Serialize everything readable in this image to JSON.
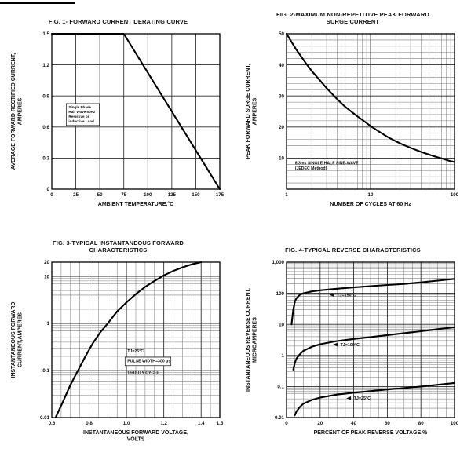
{
  "page": {
    "background": "#ffffff",
    "ink": "#111111"
  },
  "chart_data": [
    {
      "id": "fig1",
      "type": "line",
      "title": "FIG. 1- FORWARD CURRENT DERATING CURVE",
      "xlabel": "AMBIENT TEMPERATURE,°C",
      "ylabel": "AVERAGE FORWARD RECTIFIED CURRENT,\nAMPERES",
      "xscale": "linear",
      "yscale": "linear",
      "xlim": [
        0,
        175
      ],
      "ylim": [
        0,
        1.5
      ],
      "xticks": [
        [
          0,
          "0"
        ],
        [
          25,
          "25"
        ],
        [
          50,
          "50"
        ],
        [
          75,
          "75"
        ],
        [
          100,
          "100"
        ],
        [
          125,
          "125"
        ],
        [
          150,
          "150"
        ],
        [
          175,
          "175"
        ]
      ],
      "yticks": [
        [
          0,
          "0"
        ],
        [
          0.3,
          "0.3"
        ],
        [
          0.6,
          "0.6"
        ],
        [
          0.9,
          "0.9"
        ],
        [
          1.2,
          "1.2"
        ],
        [
          1.5,
          "1.5"
        ]
      ],
      "xminor": null,
      "yminor": null,
      "grid": true,
      "series": [
        {
          "name": "derating-curve",
          "points": [
            [
              0,
              1.5
            ],
            [
              75,
              1.5
            ],
            [
              175,
              0
            ]
          ]
        }
      ],
      "annotations": [
        {
          "text": "Single Phase\nHalf Wave 60Hz\nResistive or\ninductive Load",
          "fx": 0.1,
          "fy": 0.48,
          "boxed": true,
          "size": 4.6
        }
      ]
    },
    {
      "id": "fig2",
      "type": "line",
      "title": "FIG. 2-MAXIMUM NON-REPETITIVE PEAK FORWARD\nSURGE CURRENT",
      "xlabel": "NUMBER OF CYCLES AT 60 Hz",
      "ylabel": "PEAK  FORWARD SURGE CURRENT,\nAMPERES",
      "xscale": "log",
      "yscale": "linear",
      "xlim": [
        1,
        100
      ],
      "ylim": [
        0,
        50
      ],
      "xticks": [
        [
          1,
          "1"
        ],
        [
          10,
          "10"
        ],
        [
          100,
          "100"
        ]
      ],
      "yticks": [
        [
          10,
          "10"
        ],
        [
          20,
          "20"
        ],
        [
          30,
          "30"
        ],
        [
          40,
          "40"
        ],
        [
          50,
          "50"
        ]
      ],
      "xminor": null,
      "yminor": 2,
      "grid": true,
      "series": [
        {
          "name": "surge-current",
          "points": [
            [
              1,
              50
            ],
            [
              1.3,
              45
            ],
            [
              1.7,
              40.5
            ],
            [
              2,
              38
            ],
            [
              2.5,
              35
            ],
            [
              3,
              32.5
            ],
            [
              4,
              29
            ],
            [
              5,
              26.5
            ],
            [
              6,
              24.8
            ],
            [
              7,
              23.4
            ],
            [
              8,
              22.3
            ],
            [
              10,
              20.3
            ],
            [
              13,
              18.3
            ],
            [
              16,
              16.8
            ],
            [
              20,
              15.4
            ],
            [
              25,
              14.2
            ],
            [
              30,
              13.3
            ],
            [
              40,
              12
            ],
            [
              50,
              11.1
            ],
            [
              60,
              10.4
            ],
            [
              70,
              9.9
            ],
            [
              85,
              9.2
            ],
            [
              100,
              8.7
            ]
          ]
        }
      ],
      "annotations": [
        {
          "text": "8.3ms SINGLE HALF SINE-WAVE\n    (JEDEC Method)",
          "fx": 0.05,
          "fy": 0.84,
          "size": 5.2
        }
      ]
    },
    {
      "id": "fig3",
      "type": "line",
      "title": "FIG. 3-TYPICAL INSTANTANEOUS FORWARD\nCHARACTERISTICS",
      "xlabel": "INSTANTANEOUS FORWARD VOLTAGE,\nVOLTS",
      "ylabel": "INSTANTANEOUS FORWARD\nCURRENT,AMPERES",
      "xscale": "linear",
      "yscale": "log",
      "xlim": [
        0.6,
        1.5
      ],
      "ylim": [
        0.01,
        20
      ],
      "xticks": [
        [
          0.6,
          "0.6"
        ],
        [
          0.8,
          "0.8"
        ],
        [
          1.0,
          "1.0"
        ],
        [
          1.2,
          "1.2"
        ],
        [
          1.4,
          "1.4"
        ],
        [
          1.5,
          "1.5"
        ]
      ],
      "yticks": [
        [
          20,
          "20"
        ],
        [
          10,
          "10"
        ],
        [
          1,
          "1"
        ],
        [
          0.1,
          "0.1"
        ],
        [
          0.01,
          "0.01"
        ]
      ],
      "xminor": 0.05,
      "yminor": null,
      "grid": true,
      "series": [
        {
          "name": "forward-characteristic",
          "points": [
            [
              0.62,
              0.01
            ],
            [
              0.66,
              0.022
            ],
            [
              0.7,
              0.05
            ],
            [
              0.74,
              0.1
            ],
            [
              0.78,
              0.2
            ],
            [
              0.82,
              0.38
            ],
            [
              0.86,
              0.65
            ],
            [
              0.9,
              1.0
            ],
            [
              0.95,
              1.8
            ],
            [
              1.0,
              2.8
            ],
            [
              1.05,
              4.2
            ],
            [
              1.1,
              6.0
            ],
            [
              1.15,
              8.0
            ],
            [
              1.2,
              10.5
            ],
            [
              1.25,
              13
            ],
            [
              1.3,
              15.5
            ],
            [
              1.35,
              18
            ],
            [
              1.4,
              20
            ]
          ]
        }
      ],
      "annotations": [
        {
          "text": "TJ=25°C",
          "fx": 0.45,
          "fy": 0.58,
          "size": 5.2
        },
        {
          "text": "PULSE WIDTH=300 μs",
          "fx": 0.45,
          "fy": 0.645,
          "boxed": true,
          "size": 5.2
        },
        {
          "text": "1%DUTY CYCLE",
          "fx": 0.45,
          "fy": 0.72,
          "size": 5.2
        }
      ]
    },
    {
      "id": "fig4",
      "type": "line",
      "title": "FIG. 4-TYPICAL REVERSE CHARACTERISTICS",
      "xlabel": "PERCENT OF PEAK REVERSE VOLTAGE,%",
      "ylabel": "INSTANTANEOUS REVERSE CURRENT,\nMICROAMPERES",
      "xscale": "linear",
      "yscale": "log",
      "xlim": [
        0,
        100
      ],
      "ylim": [
        0.01,
        1000
      ],
      "xticks": [
        [
          0,
          "0"
        ],
        [
          20,
          "20"
        ],
        [
          40,
          "40"
        ],
        [
          60,
          "60"
        ],
        [
          80,
          "80"
        ],
        [
          100,
          "100"
        ]
      ],
      "yticks": [
        [
          1000,
          "1,000"
        ],
        [
          100,
          "100"
        ],
        [
          10,
          "10"
        ],
        [
          1,
          "1"
        ],
        [
          0.1,
          "0.1"
        ],
        [
          0.01,
          "0.01"
        ]
      ],
      "xminor": 5,
      "yminor": null,
      "grid": true,
      "series": [
        {
          "name": "tj-150c",
          "points": [
            [
              3,
              10
            ],
            [
              4,
              30
            ],
            [
              5,
              55
            ],
            [
              6,
              70
            ],
            [
              8,
              90
            ],
            [
              10,
              100
            ],
            [
              15,
              115
            ],
            [
              20,
              125
            ],
            [
              30,
              140
            ],
            [
              40,
              155
            ],
            [
              50,
              170
            ],
            [
              60,
              185
            ],
            [
              70,
              200
            ],
            [
              80,
              225
            ],
            [
              90,
              255
            ],
            [
              100,
              290
            ]
          ]
        },
        {
          "name": "tj-100c",
          "points": [
            [
              4,
              0.35
            ],
            [
              5,
              0.6
            ],
            [
              6,
              0.8
            ],
            [
              8,
              1.1
            ],
            [
              10,
              1.4
            ],
            [
              15,
              1.9
            ],
            [
              20,
              2.3
            ],
            [
              30,
              2.9
            ],
            [
              40,
              3.4
            ],
            [
              50,
              3.9
            ],
            [
              60,
              4.5
            ],
            [
              70,
              5.2
            ],
            [
              80,
              6.0
            ],
            [
              90,
              7.0
            ],
            [
              100,
              8.0
            ]
          ]
        },
        {
          "name": "tj-25c",
          "points": [
            [
              5,
              0.012
            ],
            [
              6,
              0.016
            ],
            [
              8,
              0.022
            ],
            [
              10,
              0.028
            ],
            [
              15,
              0.037
            ],
            [
              20,
              0.044
            ],
            [
              30,
              0.055
            ],
            [
              40,
              0.063
            ],
            [
              60,
              0.08
            ],
            [
              80,
              0.1
            ],
            [
              100,
              0.13
            ]
          ]
        }
      ],
      "annotations": [
        {
          "text": "TJ=150°C",
          "fx": 0.3,
          "fy": 0.22,
          "size": 5.4,
          "arrow": true
        },
        {
          "text": "TJ=100°C",
          "fx": 0.32,
          "fy": 0.54,
          "size": 5.4,
          "arrow": true
        },
        {
          "text": "TJ=25°C",
          "fx": 0.4,
          "fy": 0.885,
          "size": 5.4,
          "arrow": true
        }
      ]
    }
  ]
}
